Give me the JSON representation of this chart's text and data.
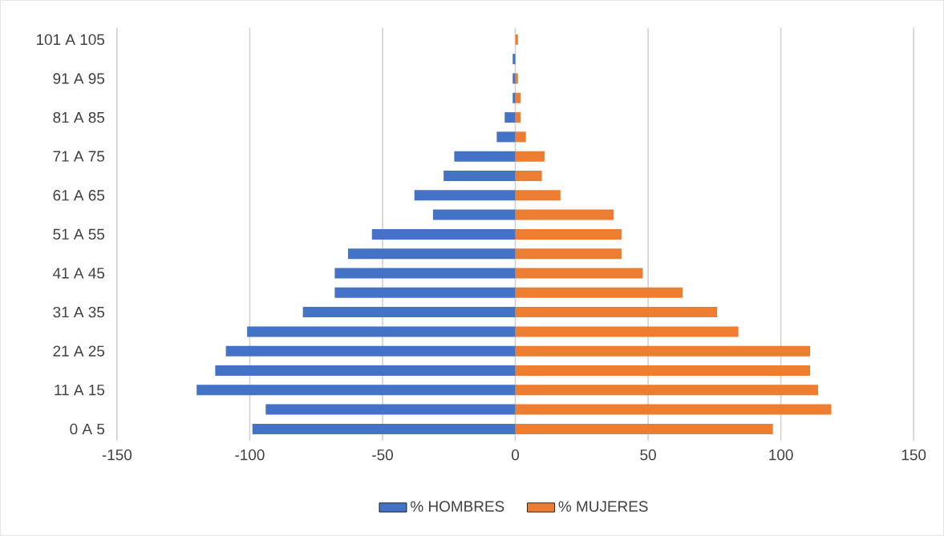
{
  "chart_data": {
    "type": "bar",
    "orientation": "horizontal",
    "categories": [
      "101 A 105",
      null,
      "91 A 95",
      null,
      "81 A 85",
      null,
      "71 A 75",
      null,
      "61 A 65",
      null,
      "51 A 55",
      null,
      "41 A 45",
      null,
      "31 A 35",
      null,
      "21 A 25",
      null,
      "11 A 15",
      null,
      "0 A 5"
    ],
    "series": [
      {
        "name": "% HOMBRES",
        "color": "#4472c4",
        "values": [
          0,
          -1,
          -1,
          -1,
          -4,
          -7,
          -23,
          -27,
          -38,
          -31,
          -54,
          -63,
          -68,
          -68,
          -80,
          -101,
          -109,
          -113,
          -120,
          -94,
          -99
        ]
      },
      {
        "name": "% MUJERES",
        "color": "#ed7d31",
        "values": [
          1,
          0,
          1,
          2,
          2,
          4,
          11,
          10,
          17,
          37,
          40,
          40,
          48,
          63,
          76,
          84,
          111,
          111,
          114,
          119,
          97
        ]
      }
    ],
    "xlim": [
      -150,
      150
    ],
    "xticks": [
      -150,
      -100,
      -50,
      0,
      50,
      100,
      150
    ],
    "stacked": true,
    "grid": "x",
    "legend": "bottom"
  }
}
